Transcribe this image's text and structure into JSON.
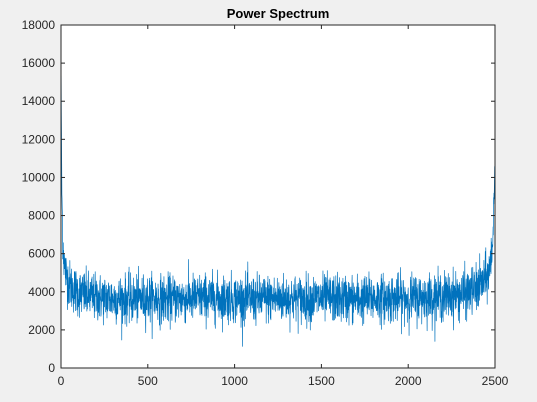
{
  "chart_data": {
    "type": "line",
    "title": "Power Spectrum",
    "xlabel": "",
    "ylabel": "",
    "xlim": [
      0,
      2500
    ],
    "ylim": [
      0,
      18000
    ],
    "x_ticks": [
      0,
      500,
      1000,
      1500,
      2000,
      2500
    ],
    "y_ticks": [
      0,
      2000,
      4000,
      6000,
      8000,
      10000,
      12000,
      14000,
      16000,
      18000
    ],
    "x_tick_labels": [
      "0",
      "500",
      "1000",
      "1500",
      "2000",
      "2500"
    ],
    "y_tick_labels": [
      "0",
      "2000",
      "4000",
      "6000",
      "8000",
      "10000",
      "12000",
      "14000",
      "16000",
      "18000"
    ],
    "grid": false,
    "line_color": "#0072bd",
    "series": [
      {
        "x": [
          0,
          2,
          5,
          10,
          15,
          20,
          30,
          40,
          50,
          60,
          80,
          100,
          150,
          200,
          300,
          400,
          500,
          600,
          700,
          800,
          900,
          1000,
          1100,
          1200,
          1250,
          1300,
          1400,
          1500,
          1600,
          1700,
          1800,
          1900,
          2000,
          2100,
          2200,
          2300,
          2350,
          2400,
          2440,
          2460,
          2470,
          2480,
          2485,
          2490,
          2495,
          2498,
          2500
        ],
        "values": [
          16800,
          13500,
          9200,
          7000,
          6000,
          5400,
          4900,
          4600,
          4400,
          4250,
          4100,
          3950,
          3800,
          3700,
          3650,
          3600,
          3650,
          3600,
          3650,
          3700,
          3650,
          3650,
          3600,
          3650,
          3650,
          3650,
          3600,
          3650,
          3650,
          3600,
          3650,
          3650,
          3650,
          3700,
          3750,
          3850,
          3950,
          4200,
          4600,
          4900,
          5300,
          5900,
          6500,
          7500,
          9000,
          10500,
          11600
        ]
      }
    ]
  },
  "colors": {
    "figure_background": "#f0f0f0",
    "axes_background": "#ffffff",
    "axes_edge": "#262626"
  }
}
